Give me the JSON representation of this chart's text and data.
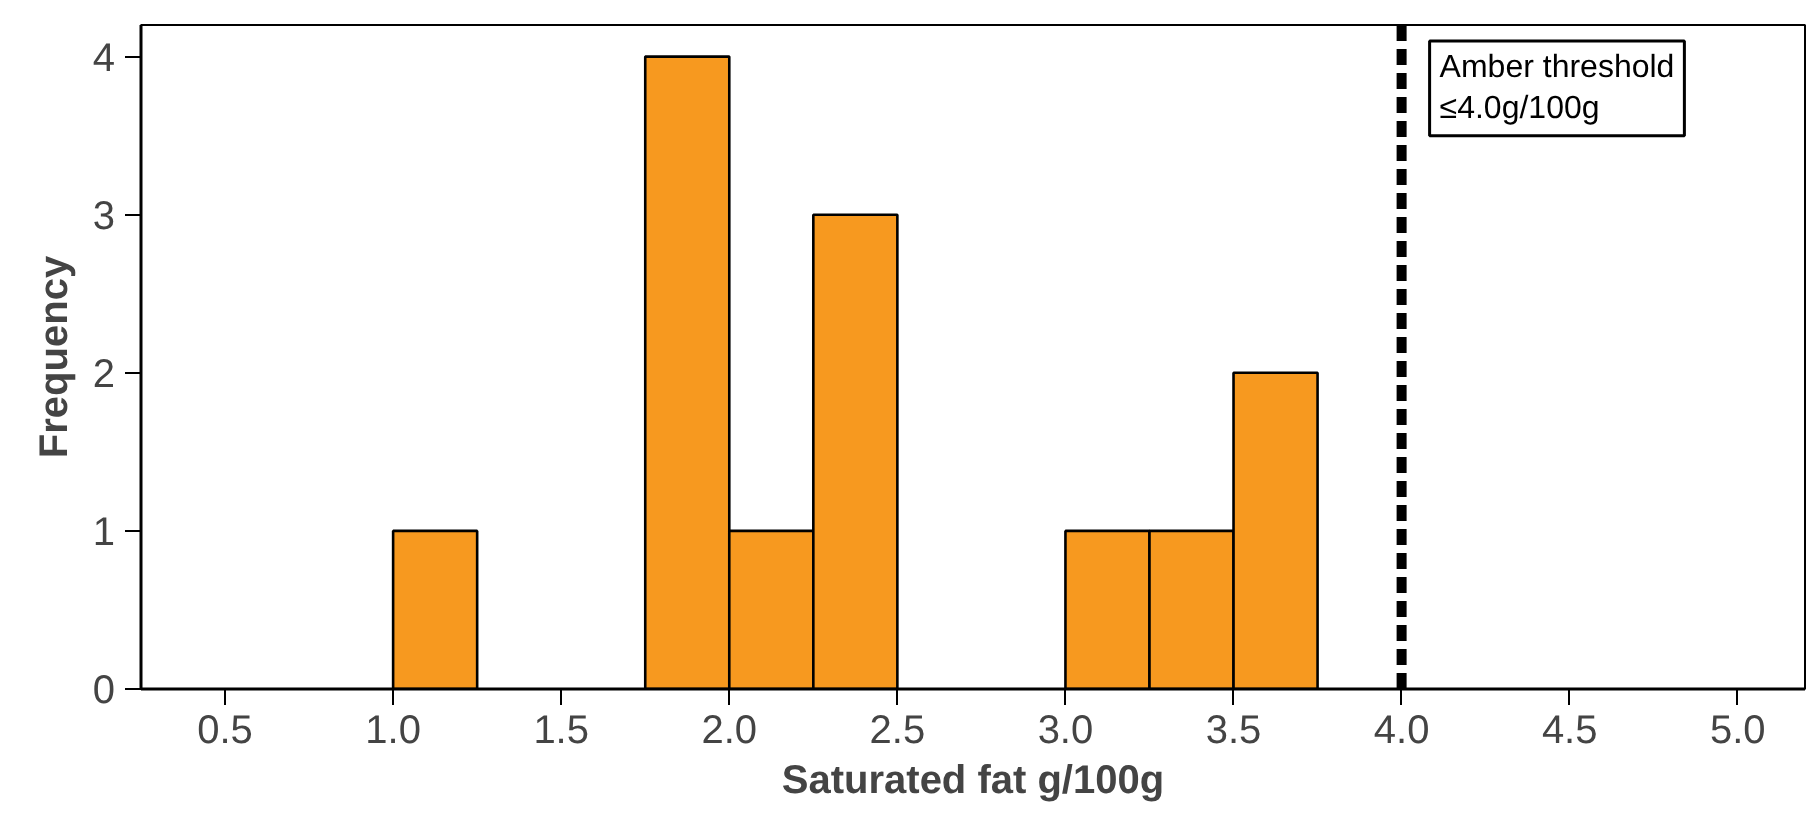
{
  "chart_data": {
    "type": "histogram",
    "xlabel": "Saturated fat g/100g",
    "ylabel": "Frequency",
    "bins": [
      1.0,
      1.25,
      1.5,
      1.75,
      2.0,
      2.25,
      2.5,
      2.75,
      3.0,
      3.25,
      3.5,
      3.75
    ],
    "values": [
      1,
      0,
      0,
      4,
      1,
      3,
      0,
      0,
      1,
      1,
      2
    ],
    "color": "#f7991f",
    "xlim": [
      0.25,
      5.2
    ],
    "ylim": [
      0,
      4.2
    ],
    "xticks": [
      0.5,
      {
        "value": 1.0,
        "label": "1.0"
      },
      1.5,
      {
        "value": 2.0,
        "label": "2.0"
      },
      2.5,
      {
        "value": 3.0,
        "label": "3.0"
      },
      3.5,
      {
        "value": 4.0,
        "label": "4.0"
      },
      4.5,
      {
        "value": 5.0,
        "label": "5.0"
      }
    ],
    "yticks": [
      0,
      1,
      2,
      3,
      4
    ],
    "grid": false,
    "ref_lines": [
      {
        "axis": "x",
        "value": 4.0,
        "label": "Amber threshold\n≤4.0g/100g",
        "color": "#000000",
        "line_style": "dashed"
      }
    ]
  }
}
